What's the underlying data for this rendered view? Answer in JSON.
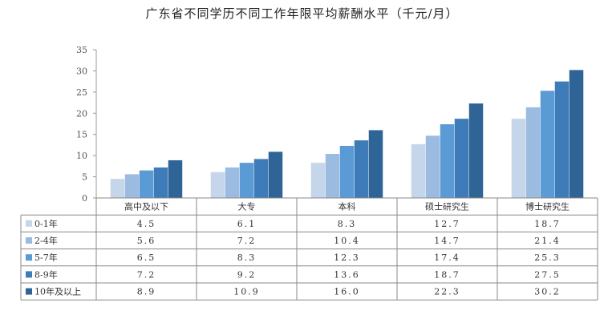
{
  "chart_data": {
    "type": "bar",
    "title": "广东省不同学历不同工作年限平均薪酬水平（千元/月）",
    "categories": [
      "高中及以下",
      "大专",
      "本科",
      "硕士研究生",
      "博士研究生"
    ],
    "series": [
      {
        "name": "0-1年",
        "color": "#c5d5ea",
        "values": [
          4.5,
          6.1,
          8.3,
          12.7,
          18.7
        ],
        "labels": [
          "4.5",
          "6.1",
          "8.3",
          "12.7",
          "18.7"
        ]
      },
      {
        "name": "2-4年",
        "color": "#9bbbe0",
        "values": [
          5.6,
          7.2,
          10.4,
          14.7,
          21.4
        ],
        "labels": [
          "5.6",
          "7.2",
          "10.4",
          "14.7",
          "21.4"
        ]
      },
      {
        "name": "5-7年",
        "color": "#5b9bd5",
        "values": [
          6.5,
          8.3,
          12.3,
          17.4,
          25.3
        ],
        "labels": [
          "6.5",
          "8.3",
          "12.3",
          "17.4",
          "25.3"
        ]
      },
      {
        "name": "8-9年",
        "color": "#3e7cb9",
        "values": [
          7.2,
          9.2,
          13.6,
          18.7,
          27.5
        ],
        "labels": [
          "7.2",
          "9.2",
          "13.6",
          "18.7",
          "27.5"
        ]
      },
      {
        "name": "10年及以上",
        "color": "#2e6496",
        "values": [
          8.9,
          10.9,
          16.0,
          22.3,
          30.2
        ],
        "labels": [
          "8.9",
          "10.9",
          "16.0",
          "22.3",
          "30.2"
        ]
      }
    ],
    "yticks": [
      "0",
      "5",
      "10",
      "15",
      "20",
      "25",
      "30",
      "35"
    ],
    "ylim": [
      0,
      35
    ],
    "grid": false,
    "legend": "data-table-left"
  }
}
